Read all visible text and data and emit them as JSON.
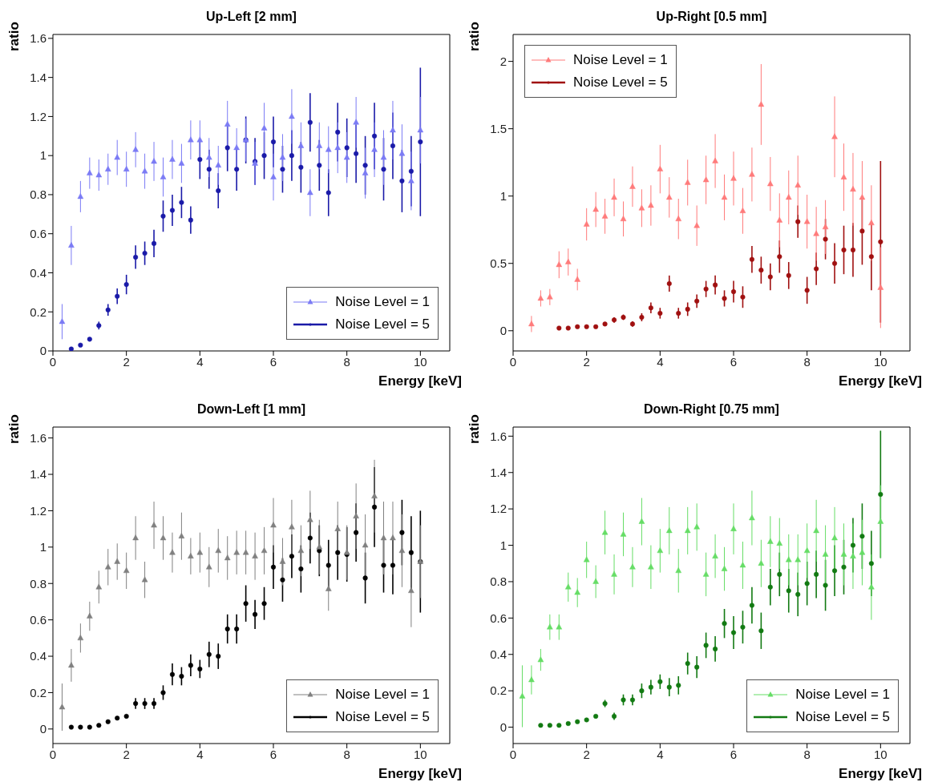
{
  "chart_data": [
    {
      "type": "scatter",
      "title": "Up-Left [2 mm]",
      "xlabel": "Energy [keV]",
      "ylabel": "ratio",
      "xlim": [
        0,
        10.8
      ],
      "xticks": [
        0,
        2,
        4,
        6,
        8,
        10
      ],
      "ylim": [
        0,
        1.62
      ],
      "yticks": [
        0,
        0.2,
        0.4,
        0.6,
        0.8,
        1,
        1.2,
        1.4,
        1.6
      ],
      "legend": "bottom right",
      "x": [
        0.25,
        0.5,
        0.75,
        1,
        1.25,
        1.5,
        1.75,
        2,
        2.25,
        2.5,
        2.75,
        3,
        3.25,
        3.5,
        3.75,
        4,
        4.25,
        4.5,
        4.75,
        5,
        5.25,
        5.5,
        5.75,
        6,
        6.25,
        6.5,
        6.75,
        7,
        7.25,
        7.5,
        7.75,
        8,
        8.25,
        8.5,
        8.75,
        9,
        9.25,
        9.5,
        9.75,
        10
      ],
      "series": [
        {
          "name": "Noise Level = 1",
          "color": "#7b7bf5",
          "marker": "triangle",
          "values": [
            0.15,
            0.54,
            0.79,
            0.91,
            0.9,
            0.93,
            0.99,
            0.93,
            1.03,
            0.92,
            0.97,
            0.89,
            0.98,
            0.96,
            1.08,
            1.08,
            0.99,
            0.95,
            1.16,
            1.04,
            1.08,
            0.96,
            1.14,
            0.89,
            0.99,
            1.2,
            1.05,
            0.81,
            1.05,
            1.03,
            1.04,
            0.99,
            1.17,
            0.91,
            1.03,
            0.99,
            1.13,
            1.01,
            0.87,
            1.13
          ],
          "errors": [
            0.09,
            0.1,
            0.08,
            0.08,
            0.08,
            0.08,
            0.09,
            0.09,
            0.09,
            0.09,
            0.1,
            0.1,
            0.1,
            0.1,
            0.1,
            0.1,
            0.1,
            0.1,
            0.12,
            0.1,
            0.11,
            0.11,
            0.13,
            0.12,
            0.12,
            0.14,
            0.12,
            0.12,
            0.12,
            0.12,
            0.13,
            0.13,
            0.13,
            0.13,
            0.14,
            0.14,
            0.15,
            0.15,
            0.15,
            0.17
          ]
        },
        {
          "name": "Noise Level = 5",
          "color": "#1a1aa8",
          "marker": "circle",
          "values": [
            null,
            0.01,
            0.03,
            0.06,
            0.13,
            0.21,
            0.28,
            0.34,
            0.48,
            0.5,
            0.55,
            0.69,
            0.72,
            0.76,
            0.67,
            0.98,
            0.93,
            0.82,
            1.04,
            0.93,
            1.08,
            0.97,
            1.0,
            1.07,
            0.93,
            1.0,
            0.94,
            1.17,
            0.95,
            0.81,
            1.12,
            1.04,
            1.01,
            0.95,
            1.1,
            0.93,
            1.05,
            0.87,
            0.92,
            1.07
          ],
          "errors": [
            null,
            0.005,
            0.005,
            0.01,
            0.02,
            0.03,
            0.04,
            0.05,
            0.06,
            0.06,
            0.07,
            0.08,
            0.08,
            0.08,
            0.07,
            0.1,
            0.1,
            0.09,
            0.12,
            0.11,
            0.12,
            0.12,
            0.12,
            0.13,
            0.12,
            0.13,
            0.13,
            0.15,
            0.13,
            0.12,
            0.15,
            0.15,
            0.15,
            0.15,
            0.17,
            0.16,
            0.17,
            0.16,
            0.18,
            0.38
          ]
        }
      ]
    },
    {
      "type": "scatter",
      "title": "Up-Right [0.5 mm]",
      "xlabel": "Energy [keV]",
      "ylabel": "ratio",
      "xlim": [
        0,
        10.8
      ],
      "xticks": [
        0,
        2,
        4,
        6,
        8,
        10
      ],
      "ylim": [
        -0.15,
        2.2
      ],
      "yticks": [
        0,
        0.5,
        1,
        1.5,
        2
      ],
      "legend": "top left",
      "x": [
        0.5,
        0.75,
        1,
        1.25,
        1.5,
        1.75,
        2,
        2.25,
        2.5,
        2.75,
        3,
        3.25,
        3.5,
        3.75,
        4,
        4.25,
        4.5,
        4.75,
        5,
        5.25,
        5.5,
        5.75,
        6,
        6.25,
        6.5,
        6.75,
        7,
        7.25,
        7.5,
        7.75,
        8,
        8.25,
        8.5,
        8.75,
        9,
        9.25,
        9.5,
        9.75,
        10
      ],
      "series": [
        {
          "name": "Noise Level = 1",
          "color": "#ff7b7b",
          "marker": "triangle",
          "values": [
            0.05,
            0.24,
            0.25,
            0.49,
            0.51,
            0.38,
            0.79,
            0.9,
            0.85,
            0.99,
            0.83,
            1.07,
            0.91,
            0.93,
            1.2,
            0.99,
            0.83,
            1.1,
            0.78,
            1.12,
            1.26,
            0.99,
            1.13,
            0.89,
            1.16,
            1.68,
            1.09,
            0.82,
            0.99,
            1.08,
            0.81,
            0.72,
            0.77,
            1.44,
            1.14,
            1.05,
            0.99,
            0.8,
            0.32
          ],
          "errors": [
            0.06,
            0.06,
            0.06,
            0.1,
            0.1,
            0.08,
            0.12,
            0.13,
            0.13,
            0.14,
            0.13,
            0.15,
            0.14,
            0.15,
            0.18,
            0.15,
            0.15,
            0.17,
            0.15,
            0.18,
            0.2,
            0.17,
            0.2,
            0.17,
            0.2,
            0.3,
            0.2,
            0.2,
            0.2,
            0.22,
            0.2,
            0.2,
            0.2,
            0.3,
            0.25,
            0.27,
            0.27,
            0.28,
            0.3
          ]
        },
        {
          "name": "Noise Level = 5",
          "color": "#a01010",
          "marker": "circle",
          "values": [
            null,
            null,
            null,
            0.02,
            0.02,
            0.03,
            0.03,
            0.03,
            0.05,
            0.08,
            0.1,
            0.05,
            0.1,
            0.17,
            0.13,
            0.35,
            0.13,
            0.16,
            0.22,
            0.31,
            0.34,
            0.24,
            0.29,
            0.25,
            0.53,
            0.45,
            0.4,
            0.55,
            0.41,
            0.81,
            0.3,
            0.46,
            0.68,
            0.5,
            0.6,
            0.6,
            0.74,
            0.55,
            0.66
          ],
          "errors": [
            null,
            null,
            null,
            0.01,
            0.01,
            0.01,
            0.01,
            0.01,
            0.01,
            0.02,
            0.02,
            0.02,
            0.03,
            0.04,
            0.04,
            0.06,
            0.04,
            0.05,
            0.05,
            0.06,
            0.07,
            0.06,
            0.08,
            0.08,
            0.1,
            0.1,
            0.1,
            0.12,
            0.1,
            0.12,
            0.1,
            0.12,
            0.15,
            0.15,
            0.18,
            0.2,
            0.25,
            0.25,
            0.6
          ]
        }
      ]
    },
    {
      "type": "scatter",
      "title": "Down-Left [1 mm]",
      "xlabel": "Energy [keV]",
      "ylabel": "ratio",
      "xlim": [
        0,
        10.8
      ],
      "xticks": [
        0,
        2,
        4,
        6,
        8,
        10
      ],
      "ylim": [
        -0.08,
        1.66
      ],
      "yticks": [
        0,
        0.2,
        0.4,
        0.6,
        0.8,
        1,
        1.2,
        1.4,
        1.6
      ],
      "legend": "bottom right",
      "x": [
        0.25,
        0.5,
        0.75,
        1,
        1.25,
        1.5,
        1.75,
        2,
        2.25,
        2.5,
        2.75,
        3,
        3.25,
        3.5,
        3.75,
        4,
        4.25,
        4.5,
        4.75,
        5,
        5.25,
        5.5,
        5.75,
        6,
        6.25,
        6.5,
        6.75,
        7,
        7.25,
        7.5,
        7.75,
        8,
        8.25,
        8.5,
        8.75,
        9,
        9.25,
        9.5,
        9.75,
        10
      ],
      "series": [
        {
          "name": "Noise Level = 1",
          "color": "#808080",
          "marker": "triangle",
          "values": [
            0.12,
            0.35,
            0.5,
            0.62,
            0.78,
            0.89,
            0.92,
            0.87,
            1.05,
            0.82,
            1.12,
            1.05,
            0.97,
            1.06,
            0.95,
            0.97,
            0.89,
            0.98,
            0.94,
            0.97,
            0.97,
            0.95,
            0.98,
            1.12,
            0.92,
            1.11,
            0.98,
            1.15,
            1.0,
            0.77,
            1.1,
            0.97,
            1.17,
            1.01,
            1.28,
            1.05,
            1.05,
            0.98,
            0.76,
            0.92
          ],
          "errors": [
            0.13,
            0.09,
            0.08,
            0.08,
            0.09,
            0.1,
            0.1,
            0.1,
            0.12,
            0.1,
            0.13,
            0.12,
            0.11,
            0.13,
            0.1,
            0.11,
            0.11,
            0.12,
            0.12,
            0.12,
            0.12,
            0.13,
            0.13,
            0.15,
            0.13,
            0.15,
            0.14,
            0.16,
            0.15,
            0.12,
            0.15,
            0.15,
            0.18,
            0.17,
            0.2,
            0.2,
            0.2,
            0.2,
            0.2,
            0.2
          ]
        },
        {
          "name": "Noise Level = 5",
          "color": "#000000",
          "marker": "circle",
          "values": [
            null,
            0.01,
            0.01,
            0.01,
            0.02,
            0.04,
            0.06,
            0.07,
            0.14,
            0.14,
            0.14,
            0.2,
            0.3,
            0.29,
            0.35,
            0.33,
            0.41,
            0.4,
            0.55,
            0.55,
            0.69,
            0.63,
            0.69,
            0.89,
            0.82,
            0.95,
            0.88,
            1.05,
            0.98,
            0.9,
            0.97,
            0.96,
            1.08,
            0.83,
            1.22,
            0.9,
            0.9,
            1.08,
            0.97,
            0.92
          ],
          "errors": [
            null,
            0.005,
            0.005,
            0.005,
            0.01,
            0.01,
            0.01,
            0.01,
            0.03,
            0.03,
            0.03,
            0.04,
            0.06,
            0.05,
            0.06,
            0.05,
            0.07,
            0.07,
            0.08,
            0.08,
            0.1,
            0.08,
            0.09,
            0.12,
            0.12,
            0.12,
            0.13,
            0.14,
            0.14,
            0.14,
            0.15,
            0.15,
            0.16,
            0.14,
            0.22,
            0.15,
            0.16,
            0.18,
            0.2,
            0.28
          ]
        }
      ]
    },
    {
      "type": "scatter",
      "title": "Down-Right [0.75 mm]",
      "xlabel": "Energy [keV]",
      "ylabel": "ratio",
      "xlim": [
        0,
        10.8
      ],
      "xticks": [
        0,
        2,
        4,
        6,
        8,
        10
      ],
      "ylim": [
        -0.09,
        1.65
      ],
      "yticks": [
        0,
        0.2,
        0.4,
        0.6,
        0.8,
        1,
        1.2,
        1.4,
        1.6
      ],
      "legend": "bottom right",
      "x": [
        0.25,
        0.5,
        0.75,
        1,
        1.25,
        1.5,
        1.75,
        2,
        2.25,
        2.5,
        2.75,
        3,
        3.25,
        3.5,
        3.75,
        4,
        4.25,
        4.5,
        4.75,
        5,
        5.25,
        5.5,
        5.75,
        6,
        6.25,
        6.5,
        6.75,
        7,
        7.25,
        7.5,
        7.75,
        8,
        8.25,
        8.5,
        8.75,
        9,
        9.25,
        9.5,
        9.75,
        10
      ],
      "series": [
        {
          "name": "Noise Level = 1",
          "color": "#66dd66",
          "marker": "triangle",
          "values": [
            0.17,
            0.26,
            0.37,
            0.55,
            0.55,
            0.77,
            0.74,
            0.92,
            0.8,
            1.07,
            0.84,
            1.06,
            0.88,
            1.13,
            0.88,
            0.97,
            1.08,
            0.86,
            1.08,
            1.1,
            0.84,
            0.94,
            0.87,
            1.09,
            0.89,
            1.15,
            0.9,
            1.02,
            1.01,
            0.92,
            0.92,
            0.97,
            1.08,
            0.95,
            1.04,
            0.95,
            0.94,
            0.96,
            0.77,
            1.13
          ],
          "errors": [
            0.17,
            0.08,
            0.06,
            0.07,
            0.07,
            0.08,
            0.08,
            0.1,
            0.09,
            0.12,
            0.11,
            0.12,
            0.11,
            0.13,
            0.12,
            0.12,
            0.13,
            0.12,
            0.13,
            0.13,
            0.12,
            0.12,
            0.12,
            0.14,
            0.13,
            0.15,
            0.13,
            0.14,
            0.14,
            0.14,
            0.14,
            0.15,
            0.17,
            0.16,
            0.17,
            0.17,
            0.18,
            0.18,
            0.18,
            0.2
          ]
        },
        {
          "name": "Noise Level = 5",
          "color": "#127a12",
          "marker": "circle",
          "values": [
            null,
            null,
            0.01,
            0.01,
            0.01,
            0.02,
            0.03,
            0.04,
            0.06,
            0.13,
            0.06,
            0.15,
            0.15,
            0.2,
            0.22,
            0.25,
            0.22,
            0.23,
            0.35,
            0.33,
            0.45,
            0.43,
            0.57,
            0.52,
            0.55,
            0.67,
            0.53,
            0.77,
            0.84,
            0.75,
            0.73,
            0.79,
            0.84,
            0.78,
            0.86,
            0.88,
            1.0,
            1.05,
            0.9,
            1.28
          ],
          "errors": [
            null,
            null,
            0.005,
            0.005,
            0.005,
            0.005,
            0.01,
            0.01,
            0.01,
            0.02,
            0.02,
            0.03,
            0.03,
            0.04,
            0.04,
            0.04,
            0.05,
            0.05,
            0.06,
            0.06,
            0.07,
            0.07,
            0.08,
            0.09,
            0.09,
            0.1,
            0.1,
            0.1,
            0.12,
            0.12,
            0.12,
            0.12,
            0.13,
            0.14,
            0.14,
            0.15,
            0.15,
            0.18,
            0.18,
            0.35
          ]
        }
      ]
    }
  ]
}
